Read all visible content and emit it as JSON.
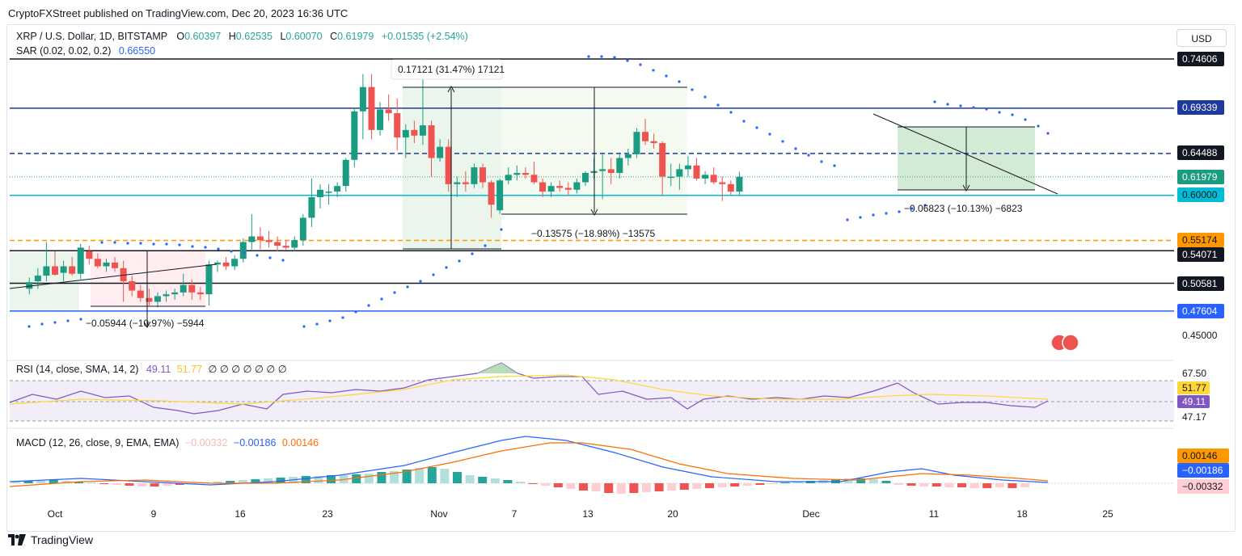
{
  "header": "CryptoFXStreet published on TradingView.com, Dec 20, 2023 16:36 UTC",
  "brand": "TradingView",
  "currency_button": "USD",
  "legend": {
    "symbol": "XRP / U.S. Dollar, 1D, BITSTAMP",
    "o_label": "O",
    "o": "0.60397",
    "h_label": "H",
    "h": "0.62535",
    "l_label": "L",
    "l": "0.60070",
    "c_label": "C",
    "c": "0.61979",
    "change": "+0.01535 (+2.54%)",
    "sar_label": "SAR (0.02, 0.02, 0.2)",
    "sar": "0.66550",
    "rsi_label": "RSI (14, close, SMA, 14, 2)",
    "rsi": "49.11",
    "rsi_ma": "51.77",
    "rsi_extra": "∅ ∅ ∅ ∅ ∅ ∅ ∅",
    "macd_label": "MACD (12, 26, close, 9, EMA, EMA)",
    "macd_hist": "−0.00332",
    "macd": "−0.00186",
    "macd_signal": "0.00146"
  },
  "colors": {
    "up": "#26a69a",
    "up_fill": "#1a9b82",
    "down": "#ef5350",
    "sar": "#2962ff",
    "navy": "#1e3a9a",
    "teal": "#00bcd4",
    "orange": "#ff9800",
    "black": "#131722",
    "rsi": "#7e57c2",
    "rsi_ma": "#fdd835",
    "macd": "#2962ff",
    "signal": "#ff6d00"
  },
  "price_labels": [
    {
      "text": "0.74606",
      "style": "black"
    },
    {
      "text": "0.69339",
      "style": "navy"
    },
    {
      "text": "0.64488",
      "style": "black"
    },
    {
      "text": "0.61979",
      "style": "green"
    },
    {
      "text": "0.60000",
      "style": "teal"
    },
    {
      "text": "0.55174",
      "style": "orange"
    },
    {
      "text": "0.54071",
      "style": "black"
    },
    {
      "text": "0.50581",
      "style": "black"
    },
    {
      "text": "0.47604",
      "style": "blue"
    },
    {
      "text": "0.45000",
      "style": "plain"
    }
  ],
  "rsi_axis": [
    {
      "text": "67.50",
      "style": "plain"
    },
    {
      "text": "51.77",
      "style": "yellow"
    },
    {
      "text": "49.11",
      "style": "purple"
    },
    {
      "text": "47.17",
      "style": "plain"
    }
  ],
  "macd_axis": [
    {
      "text": "0.00146",
      "style": "orange"
    },
    {
      "text": "−0.00186",
      "style": "blue"
    },
    {
      "text": "−0.00332",
      "style": "pink"
    }
  ],
  "x_ticks": [
    "Oct",
    "9",
    "16",
    "23",
    "Nov",
    "7",
    "13",
    "20",
    "Dec",
    "11",
    "18",
    "25"
  ],
  "annotations": [
    "0.17121 (31.47%) 17121",
    "−0.13575 (−18.98%) −13575",
    "−0.06823 (−10.13%) −6823",
    "−0.05944 (−10.97%) −5944"
  ],
  "chart_data": {
    "type": "candlestick",
    "title": "XRP / U.S. Dollar, 1D, BITSTAMP",
    "x_range": [
      "2023-09-28",
      "2023-12-27"
    ],
    "ylim": [
      0.44,
      0.76
    ],
    "candles": [
      {
        "d": "2023-09-28",
        "o": 0.5,
        "h": 0.512,
        "l": 0.494,
        "c": 0.507
      },
      {
        "d": "2023-09-29",
        "o": 0.508,
        "h": 0.522,
        "l": 0.5,
        "c": 0.514
      },
      {
        "d": "2023-09-30",
        "o": 0.514,
        "h": 0.55,
        "l": 0.508,
        "c": 0.524
      },
      {
        "d": "2023-10-01",
        "o": 0.524,
        "h": 0.54,
        "l": 0.514,
        "c": 0.515
      },
      {
        "d": "2023-10-02",
        "o": 0.517,
        "h": 0.53,
        "l": 0.508,
        "c": 0.524
      },
      {
        "d": "2023-10-03",
        "o": 0.524,
        "h": 0.534,
        "l": 0.514,
        "c": 0.516
      },
      {
        "d": "2023-10-04",
        "o": 0.516,
        "h": 0.548,
        "l": 0.51,
        "c": 0.544
      },
      {
        "d": "2023-10-05",
        "o": 0.54,
        "h": 0.546,
        "l": 0.526,
        "c": 0.532
      },
      {
        "d": "2023-10-06",
        "o": 0.532,
        "h": 0.538,
        "l": 0.522,
        "c": 0.524
      },
      {
        "d": "2023-10-07",
        "o": 0.524,
        "h": 0.532,
        "l": 0.518,
        "c": 0.528
      },
      {
        "d": "2023-10-08",
        "o": 0.528,
        "h": 0.534,
        "l": 0.518,
        "c": 0.522
      },
      {
        "d": "2023-10-09",
        "o": 0.522,
        "h": 0.53,
        "l": 0.486,
        "c": 0.508
      },
      {
        "d": "2023-10-10",
        "o": 0.508,
        "h": 0.514,
        "l": 0.492,
        "c": 0.498
      },
      {
        "d": "2023-10-11",
        "o": 0.498,
        "h": 0.504,
        "l": 0.486,
        "c": 0.49
      },
      {
        "d": "2023-10-12",
        "o": 0.49,
        "h": 0.5,
        "l": 0.482,
        "c": 0.486
      },
      {
        "d": "2023-10-13",
        "o": 0.486,
        "h": 0.496,
        "l": 0.48,
        "c": 0.492
      },
      {
        "d": "2023-10-14",
        "o": 0.492,
        "h": 0.498,
        "l": 0.486,
        "c": 0.494
      },
      {
        "d": "2023-10-15",
        "o": 0.494,
        "h": 0.5,
        "l": 0.488,
        "c": 0.496
      },
      {
        "d": "2023-10-16",
        "o": 0.496,
        "h": 0.516,
        "l": 0.492,
        "c": 0.504
      },
      {
        "d": "2023-10-17",
        "o": 0.504,
        "h": 0.51,
        "l": 0.488,
        "c": 0.496
      },
      {
        "d": "2023-10-18",
        "o": 0.496,
        "h": 0.502,
        "l": 0.488,
        "c": 0.494
      },
      {
        "d": "2023-10-19",
        "o": 0.494,
        "h": 0.53,
        "l": 0.482,
        "c": 0.526
      },
      {
        "d": "2023-10-20",
        "o": 0.526,
        "h": 0.53,
        "l": 0.518,
        "c": 0.528
      },
      {
        "d": "2023-10-21",
        "o": 0.528,
        "h": 0.534,
        "l": 0.52,
        "c": 0.524
      },
      {
        "d": "2023-10-22",
        "o": 0.524,
        "h": 0.536,
        "l": 0.52,
        "c": 0.532
      },
      {
        "d": "2023-10-23",
        "o": 0.532,
        "h": 0.554,
        "l": 0.528,
        "c": 0.55
      },
      {
        "d": "2023-10-24",
        "o": 0.55,
        "h": 0.58,
        "l": 0.542,
        "c": 0.556
      },
      {
        "d": "2023-10-25",
        "o": 0.556,
        "h": 0.566,
        "l": 0.542,
        "c": 0.552
      },
      {
        "d": "2023-10-26",
        "o": 0.552,
        "h": 0.562,
        "l": 0.544,
        "c": 0.55
      },
      {
        "d": "2023-10-27",
        "o": 0.55,
        "h": 0.556,
        "l": 0.54,
        "c": 0.546
      },
      {
        "d": "2023-10-28",
        "o": 0.546,
        "h": 0.552,
        "l": 0.542,
        "c": 0.544
      },
      {
        "d": "2023-10-29",
        "o": 0.544,
        "h": 0.556,
        "l": 0.54,
        "c": 0.552
      },
      {
        "d": "2023-10-30",
        "o": 0.552,
        "h": 0.58,
        "l": 0.546,
        "c": 0.576
      },
      {
        "d": "2023-10-31",
        "o": 0.576,
        "h": 0.618,
        "l": 0.566,
        "c": 0.598
      },
      {
        "d": "2023-11-01",
        "o": 0.598,
        "h": 0.612,
        "l": 0.586,
        "c": 0.606
      },
      {
        "d": "2023-11-02",
        "o": 0.604,
        "h": 0.612,
        "l": 0.59,
        "c": 0.604
      },
      {
        "d": "2023-11-03",
        "o": 0.604,
        "h": 0.614,
        "l": 0.598,
        "c": 0.61
      },
      {
        "d": "2023-11-04",
        "o": 0.61,
        "h": 0.64,
        "l": 0.604,
        "c": 0.638
      },
      {
        "d": "2023-11-05",
        "o": 0.638,
        "h": 0.694,
        "l": 0.63,
        "c": 0.69
      },
      {
        "d": "2023-11-06",
        "o": 0.69,
        "h": 0.73,
        "l": 0.66,
        "c": 0.716
      },
      {
        "d": "2023-11-07",
        "o": 0.716,
        "h": 0.73,
        "l": 0.66,
        "c": 0.67
      },
      {
        "d": "2023-11-08",
        "o": 0.67,
        "h": 0.7,
        "l": 0.664,
        "c": 0.692
      },
      {
        "d": "2023-11-09",
        "o": 0.692,
        "h": 0.708,
        "l": 0.68,
        "c": 0.688
      },
      {
        "d": "2023-11-10",
        "o": 0.688,
        "h": 0.704,
        "l": 0.648,
        "c": 0.662
      },
      {
        "d": "2023-11-11",
        "o": 0.662,
        "h": 0.676,
        "l": 0.64,
        "c": 0.67
      },
      {
        "d": "2023-11-12",
        "o": 0.67,
        "h": 0.68,
        "l": 0.656,
        "c": 0.664
      },
      {
        "d": "2023-11-13",
        "o": 0.664,
        "h": 0.746,
        "l": 0.654,
        "c": 0.675
      },
      {
        "d": "2023-11-14",
        "o": 0.675,
        "h": 0.68,
        "l": 0.62,
        "c": 0.64
      },
      {
        "d": "2023-11-15",
        "o": 0.64,
        "h": 0.66,
        "l": 0.636,
        "c": 0.652
      },
      {
        "d": "2023-11-16",
        "o": 0.652,
        "h": 0.66,
        "l": 0.604,
        "c": 0.612
      },
      {
        "d": "2023-11-17",
        "o": 0.612,
        "h": 0.62,
        "l": 0.598,
        "c": 0.614
      },
      {
        "d": "2023-11-18",
        "o": 0.614,
        "h": 0.626,
        "l": 0.604,
        "c": 0.612
      },
      {
        "d": "2023-11-19",
        "o": 0.612,
        "h": 0.634,
        "l": 0.608,
        "c": 0.63
      },
      {
        "d": "2023-11-20",
        "o": 0.63,
        "h": 0.634,
        "l": 0.608,
        "c": 0.614
      },
      {
        "d": "2023-11-21",
        "o": 0.614,
        "h": 0.616,
        "l": 0.576,
        "c": 0.59
      },
      {
        "d": "2023-11-22",
        "o": 0.584,
        "h": 0.618,
        "l": 0.58,
        "c": 0.616
      },
      {
        "d": "2023-11-23",
        "o": 0.616,
        "h": 0.63,
        "l": 0.612,
        "c": 0.622
      },
      {
        "d": "2023-11-24",
        "o": 0.622,
        "h": 0.632,
        "l": 0.616,
        "c": 0.624
      },
      {
        "d": "2023-11-25",
        "o": 0.624,
        "h": 0.63,
        "l": 0.618,
        "c": 0.622
      },
      {
        "d": "2023-11-26",
        "o": 0.622,
        "h": 0.636,
        "l": 0.612,
        "c": 0.614
      },
      {
        "d": "2023-11-27",
        "o": 0.614,
        "h": 0.618,
        "l": 0.598,
        "c": 0.604
      },
      {
        "d": "2023-11-28",
        "o": 0.604,
        "h": 0.614,
        "l": 0.598,
        "c": 0.61
      },
      {
        "d": "2023-11-29",
        "o": 0.61,
        "h": 0.616,
        "l": 0.604,
        "c": 0.608
      },
      {
        "d": "2023-11-30",
        "o": 0.608,
        "h": 0.614,
        "l": 0.6,
        "c": 0.606
      },
      {
        "d": "2023-12-01",
        "o": 0.606,
        "h": 0.618,
        "l": 0.602,
        "c": 0.614
      },
      {
        "d": "2023-12-02",
        "o": 0.614,
        "h": 0.626,
        "l": 0.61,
        "c": 0.624
      },
      {
        "d": "2023-12-03",
        "o": 0.624,
        "h": 0.64,
        "l": 0.618,
        "c": 0.626
      },
      {
        "d": "2023-12-04",
        "o": 0.626,
        "h": 0.644,
        "l": 0.596,
        "c": 0.628
      },
      {
        "d": "2023-12-05",
        "o": 0.628,
        "h": 0.64,
        "l": 0.612,
        "c": 0.624
      },
      {
        "d": "2023-12-06",
        "o": 0.624,
        "h": 0.646,
        "l": 0.618,
        "c": 0.64
      },
      {
        "d": "2023-12-07",
        "o": 0.64,
        "h": 0.65,
        "l": 0.632,
        "c": 0.644
      },
      {
        "d": "2023-12-08",
        "o": 0.644,
        "h": 0.672,
        "l": 0.64,
        "c": 0.668
      },
      {
        "d": "2023-12-09",
        "o": 0.668,
        "h": 0.682,
        "l": 0.654,
        "c": 0.658
      },
      {
        "d": "2023-12-10",
        "o": 0.658,
        "h": 0.666,
        "l": 0.65,
        "c": 0.656
      },
      {
        "d": "2023-12-11",
        "o": 0.656,
        "h": 0.658,
        "l": 0.6,
        "c": 0.62
      },
      {
        "d": "2023-12-12",
        "o": 0.62,
        "h": 0.634,
        "l": 0.61,
        "c": 0.62
      },
      {
        "d": "2023-12-13",
        "o": 0.62,
        "h": 0.634,
        "l": 0.606,
        "c": 0.628
      },
      {
        "d": "2023-12-14",
        "o": 0.628,
        "h": 0.642,
        "l": 0.62,
        "c": 0.632
      },
      {
        "d": "2023-12-15",
        "o": 0.632,
        "h": 0.64,
        "l": 0.616,
        "c": 0.618
      },
      {
        "d": "2023-12-16",
        "o": 0.618,
        "h": 0.626,
        "l": 0.612,
        "c": 0.622
      },
      {
        "d": "2023-12-17",
        "o": 0.622,
        "h": 0.63,
        "l": 0.612,
        "c": 0.614
      },
      {
        "d": "2023-12-18",
        "o": 0.614,
        "h": 0.62,
        "l": 0.594,
        "c": 0.612
      },
      {
        "d": "2023-12-19",
        "o": 0.612,
        "h": 0.616,
        "l": 0.6,
        "c": 0.604
      },
      {
        "d": "2023-12-20",
        "o": 0.60397,
        "h": 0.62535,
        "l": 0.6007,
        "c": 0.61979
      }
    ],
    "horizontal_levels": [
      0.74606,
      0.69339,
      0.64488,
      0.61979,
      0.6,
      0.55174,
      0.54071,
      0.50581,
      0.47604
    ],
    "rsi": {
      "value": 49.11,
      "ma": 51.77,
      "upper": 67.5,
      "lower": 47.17
    },
    "macd": {
      "macd": -0.00186,
      "signal": 0.00146,
      "hist": -0.00332
    },
    "grid": false,
    "legend_position": "top-left"
  }
}
